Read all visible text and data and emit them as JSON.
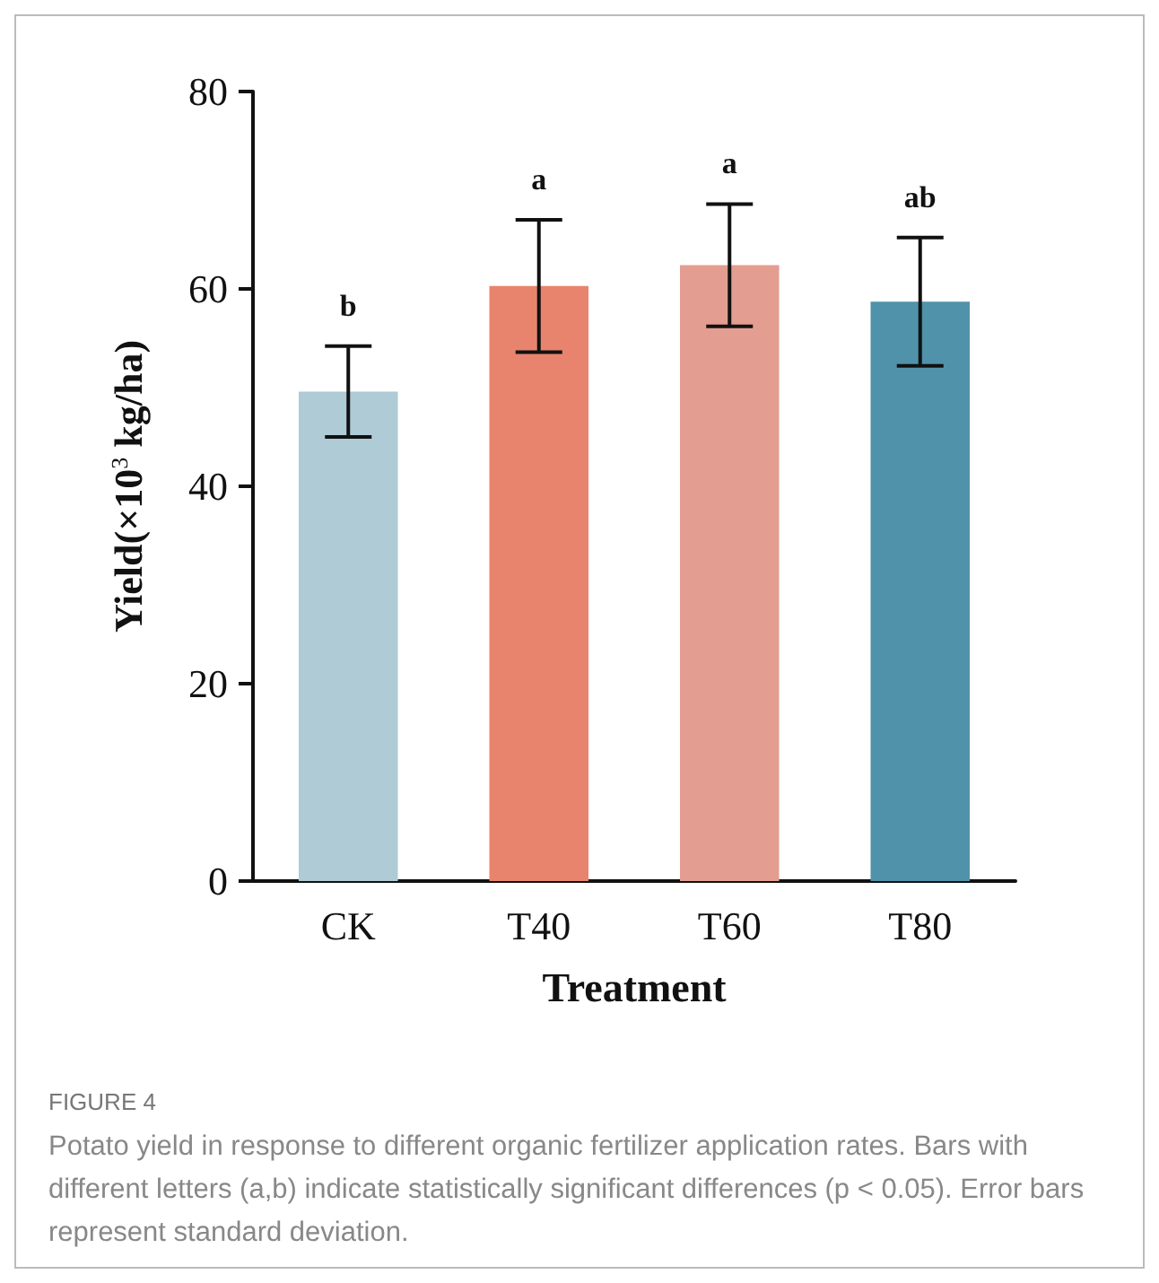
{
  "chart_data": {
    "type": "bar",
    "xlabel": "Treatment",
    "ylabel": "Yield(×10$^{3}$ kg/ha)",
    "categories": [
      "CK",
      "T40",
      "T60",
      "T80"
    ],
    "values": [
      49.6,
      60.3,
      62.4,
      58.7
    ],
    "colors": [
      "#aecbd6",
      "#e8846d",
      "#e39e91",
      "#5092aa"
    ],
    "errors": [
      4.6,
      6.7,
      6.2,
      6.5
    ],
    "value_labels": [
      "b",
      "a",
      "a",
      "ab"
    ],
    "ylim": [
      0,
      80
    ],
    "yticks": [
      0,
      20,
      40,
      60,
      80
    ],
    "grid": false,
    "annotations": [
      "FIGURE 4",
      "Potato yield in response to different organic fertilizer application rates. Bars with different letters (a,b) indicate statistically significant differences (p < 0.05). Error bars represent standard deviation."
    ]
  }
}
